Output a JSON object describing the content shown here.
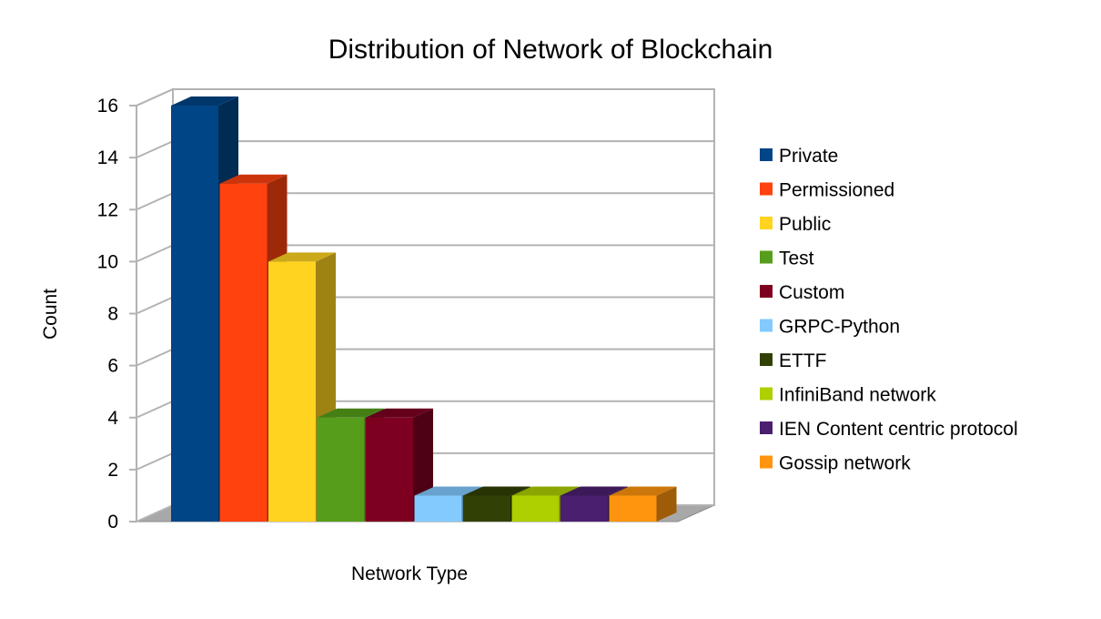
{
  "chart_data": {
    "type": "bar",
    "title": "Distribution of Network of Blockchain",
    "xlabel": "Network Type",
    "ylabel": "Count",
    "ylim": [
      0,
      16
    ],
    "yticks": [
      0,
      2,
      4,
      6,
      8,
      10,
      12,
      14,
      16
    ],
    "grid": true,
    "legend_position": "right",
    "three_d": true,
    "series": [
      {
        "name": "Private",
        "value": 16,
        "color": "#004586"
      },
      {
        "name": "Permissioned",
        "value": 13,
        "color": "#ff420e"
      },
      {
        "name": "Public",
        "value": 10,
        "color": "#ffd320"
      },
      {
        "name": "Test",
        "value": 4,
        "color": "#579d1c"
      },
      {
        "name": "Custom",
        "value": 4,
        "color": "#7e0021"
      },
      {
        "name": "GRPC-Python",
        "value": 1,
        "color": "#83caff"
      },
      {
        "name": "ETTF",
        "value": 1,
        "color": "#314004"
      },
      {
        "name": "InfiniBand network",
        "value": 1,
        "color": "#aecf00"
      },
      {
        "name": "IEN Content centric protocol",
        "value": 1,
        "color": "#4b1f6f"
      },
      {
        "name": "Gossip network",
        "value": 1,
        "color": "#ff950e"
      }
    ]
  }
}
